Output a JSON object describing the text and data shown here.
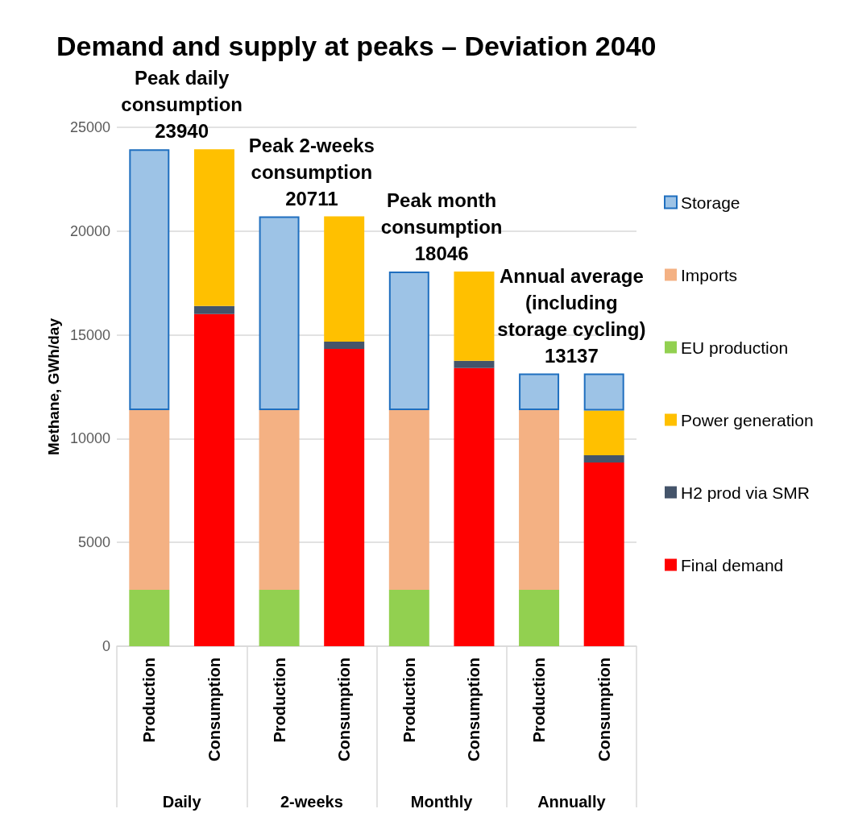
{
  "chart_data": {
    "type": "bar",
    "title": "Demand and supply at peaks – Deviation 2040",
    "ylabel": "Methane, GWh/day",
    "categories": [
      "Production",
      "Consumption",
      "Production",
      "Consumption",
      "Production",
      "Consumption",
      "Production",
      "Consumption"
    ],
    "stacked": true,
    "ylim": [
      0,
      25000
    ],
    "yticks": [
      0,
      5000,
      10000,
      15000,
      20000,
      25000
    ],
    "grid": "y",
    "legend": "right",
    "series": [
      {
        "name": "Final demand",
        "color": "#ff0000",
        "values": [
          null,
          16000,
          null,
          14320,
          null,
          13400,
          null,
          8850
        ]
      },
      {
        "name": "H2 prod via SMR",
        "color": "#44546a",
        "values": [
          null,
          390,
          null,
          350,
          null,
          350,
          null,
          350
        ]
      },
      {
        "name": "Power generation",
        "color": "#ffc000",
        "values": [
          null,
          7550,
          null,
          6040,
          null,
          4300,
          null,
          2150
        ]
      },
      {
        "name": "EU production",
        "color": "#92d050",
        "values": [
          2720,
          null,
          2720,
          null,
          2720,
          null,
          2720,
          null
        ]
      },
      {
        "name": "Imports",
        "color": "#f4b183",
        "values": [
          8650,
          null,
          8650,
          null,
          8650,
          null,
          8650,
          null
        ]
      },
      {
        "name": "Storage",
        "color": "#9dc3e6",
        "values": [
          12570,
          null,
          9340,
          null,
          6680,
          null,
          1770,
          1790
        ]
      }
    ],
    "annotations": [
      "Daily",
      "2-weeks",
      "Monthly",
      "Annually",
      "Peak daily\nconsumption\n23940",
      "Peak 2-weeks\nconsumption\n20711",
      "Peak month\nconsumption\n18046",
      "Annual average\n(including\nstorage cycling)\n13137"
    ]
  }
}
